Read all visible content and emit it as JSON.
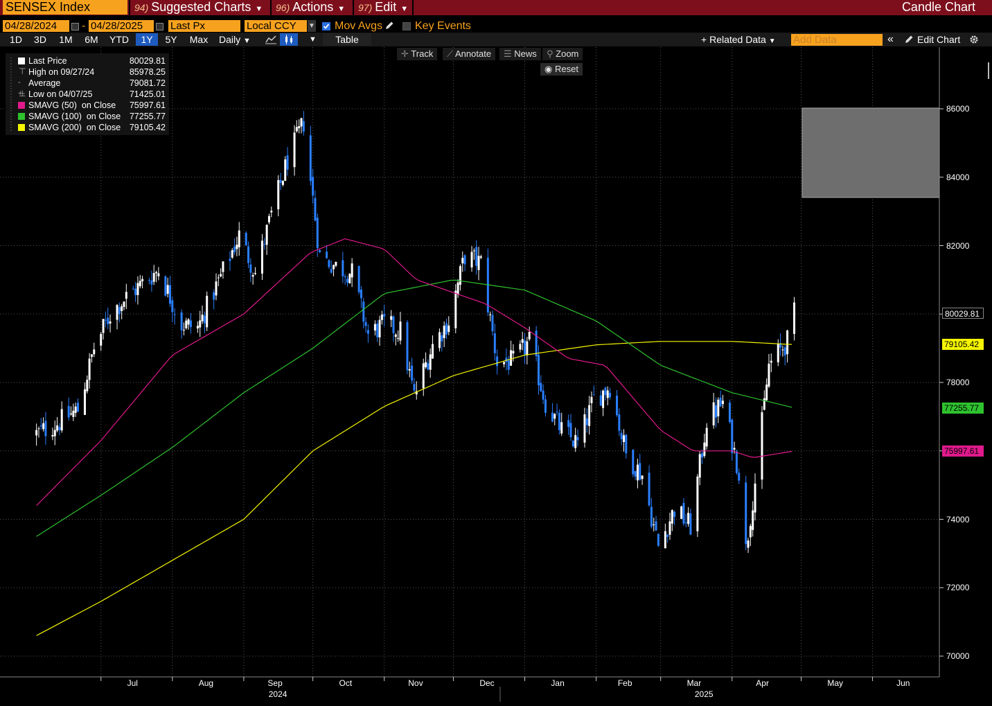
{
  "titlebar": {
    "ticker": "SENSEX Index",
    "menus": [
      {
        "num": "94)",
        "label": "Suggested Charts"
      },
      {
        "num": "96)",
        "label": "Actions"
      },
      {
        "num": "97)",
        "label": "Edit"
      }
    ],
    "chart_type": "Candle Chart"
  },
  "controls": {
    "start_date": "04/28/2024",
    "dash": "-",
    "end_date": "04/28/2025",
    "field": "Last Px",
    "currency": "Local CCY",
    "mov_avgs_label": "Mov Avgs",
    "mov_avgs_checked": true,
    "key_events_label": "Key Events",
    "key_events_checked": false
  },
  "timeframes": [
    "1D",
    "3D",
    "1M",
    "6M",
    "YTD",
    "1Y",
    "5Y",
    "Max"
  ],
  "active_timeframe": "1Y",
  "frequency": "Daily",
  "table_label": "Table",
  "related_data": "Related Data",
  "add_data_placeholder": "Add Data",
  "edit_chart": "Edit Chart",
  "chart_tools": {
    "track": "Track",
    "annotate": "Annotate",
    "news": "News",
    "zoom": "Zoom",
    "reset": "Reset"
  },
  "legend": [
    {
      "label": "Last Price",
      "value": "80029.81",
      "color": "#ffffff",
      "marker": "square"
    },
    {
      "label": "High on 09/27/24",
      "value": "85978.25",
      "color": "#aaaaaa",
      "marker": "high"
    },
    {
      "label": "Average",
      "value": "79081.72",
      "color": "#aaaaaa",
      "marker": "avg"
    },
    {
      "label": "Low on 04/07/25",
      "value": "71425.01",
      "color": "#aaaaaa",
      "marker": "low"
    },
    {
      "label": "SMAVG (50)  on Close",
      "value": "75997.61",
      "color": "#e0198c",
      "marker": "square"
    },
    {
      "label": "SMAVG (100)  on Close",
      "value": "77255.77",
      "color": "#2ec22e",
      "marker": "square"
    },
    {
      "label": "SMAVG (200)  on Close",
      "value": "79105.42",
      "color": "#f5f500",
      "marker": "square"
    }
  ],
  "colors": {
    "up": "#ffffff",
    "down": "#2a7fff",
    "sma50": "#e0198c",
    "sma100": "#2ec22e",
    "sma200": "#f5f500",
    "accent": "#f7a21e",
    "titlebar": "#7d0f1c"
  },
  "chart_data": {
    "type": "candlestick",
    "ylim": [
      69500,
      87500
    ],
    "yticks": [
      "86000",
      "84000",
      "82000",
      "80000",
      "78000",
      "76000",
      "74000",
      "72000",
      "70000"
    ],
    "xticks": [
      "Jul",
      "Aug",
      "Sep",
      "Oct",
      "Nov",
      "Dec",
      "Jan",
      "Feb",
      "Mar",
      "Apr",
      "May",
      "Jun"
    ],
    "years": [
      "2024",
      "2025"
    ],
    "price_tags": [
      {
        "label": "80029.81",
        "value": 80029.81,
        "bg": "#000000",
        "fg": "#ffffff"
      },
      {
        "label": "79105.42",
        "value": 79105.42,
        "bg": "#f5f500",
        "fg": "#000000"
      },
      {
        "label": "77255.77",
        "value": 77255.77,
        "bg": "#2ec22e",
        "fg": "#000000"
      },
      {
        "label": "75997.61",
        "value": 75997.61,
        "bg": "#e0198c",
        "fg": "#000000"
      }
    ],
    "close_path": [
      [
        "2024-06-03",
        76500
      ],
      [
        "2024-06-12",
        76800
      ],
      [
        "2024-06-21",
        77200
      ],
      [
        "2024-06-28",
        79000
      ],
      [
        "2024-07-05",
        80000
      ],
      [
        "2024-07-12",
        80500
      ],
      [
        "2024-07-19",
        80900
      ],
      [
        "2024-07-26",
        81300
      ],
      [
        "2024-08-05",
        79700
      ],
      [
        "2024-08-12",
        79600
      ],
      [
        "2024-08-20",
        80800
      ],
      [
        "2024-08-30",
        82300
      ],
      [
        "2024-09-06",
        81200
      ],
      [
        "2024-09-13",
        82900
      ],
      [
        "2024-09-20",
        84500
      ],
      [
        "2024-09-27",
        85600
      ],
      [
        "2024-10-04",
        81700
      ],
      [
        "2024-10-11",
        81400
      ],
      [
        "2024-10-18",
        81200
      ],
      [
        "2024-10-25",
        79400
      ],
      [
        "2024-11-01",
        79700
      ],
      [
        "2024-11-08",
        79500
      ],
      [
        "2024-11-14",
        77600
      ],
      [
        "2024-11-22",
        79100
      ],
      [
        "2024-11-29",
        79800
      ],
      [
        "2024-12-06",
        81700
      ],
      [
        "2024-12-13",
        81500
      ],
      [
        "2024-12-20",
        78600
      ],
      [
        "2024-12-27",
        78600
      ],
      [
        "2025-01-03",
        79200
      ],
      [
        "2025-01-10",
        77400
      ],
      [
        "2025-01-17",
        76600
      ],
      [
        "2025-01-24",
        76200
      ],
      [
        "2025-01-31",
        77500
      ],
      [
        "2025-02-07",
        77900
      ],
      [
        "2025-02-14",
        75900
      ],
      [
        "2025-02-21",
        75300
      ],
      [
        "2025-02-28",
        73200
      ],
      [
        "2025-03-07",
        74300
      ],
      [
        "2025-03-14",
        73800
      ],
      [
        "2025-03-21",
        76900
      ],
      [
        "2025-03-28",
        77400
      ],
      [
        "2025-04-04",
        75400
      ],
      [
        "2025-04-07",
        73100
      ],
      [
        "2025-04-11",
        75100
      ],
      [
        "2025-04-17",
        78500
      ],
      [
        "2025-04-25",
        79200
      ],
      [
        "2025-04-28",
        80029.81
      ]
    ],
    "sma50_path": [
      [
        "2024-06-03",
        74400
      ],
      [
        "2024-07-01",
        76300
      ],
      [
        "2024-08-01",
        78800
      ],
      [
        "2024-09-01",
        80000
      ],
      [
        "2024-09-30",
        81800
      ],
      [
        "2024-10-15",
        82200
      ],
      [
        "2024-11-01",
        81900
      ],
      [
        "2024-11-15",
        81000
      ],
      [
        "2024-12-15",
        80300
      ],
      [
        "2025-01-01",
        79600
      ],
      [
        "2025-01-20",
        78700
      ],
      [
        "2025-02-05",
        78500
      ],
      [
        "2025-03-01",
        76600
      ],
      [
        "2025-03-15",
        76000
      ],
      [
        "2025-04-01",
        76000
      ],
      [
        "2025-04-10",
        75800
      ],
      [
        "2025-04-28",
        75997.61
      ]
    ],
    "sma100_path": [
      [
        "2024-06-03",
        73500
      ],
      [
        "2024-07-01",
        74700
      ],
      [
        "2024-08-01",
        76100
      ],
      [
        "2024-09-01",
        77700
      ],
      [
        "2024-10-01",
        79000
      ],
      [
        "2024-11-01",
        80600
      ],
      [
        "2024-12-01",
        81000
      ],
      [
        "2025-01-01",
        80700
      ],
      [
        "2025-02-01",
        79800
      ],
      [
        "2025-03-01",
        78500
      ],
      [
        "2025-04-01",
        77700
      ],
      [
        "2025-04-28",
        77255.77
      ]
    ],
    "sma200_path": [
      [
        "2024-06-03",
        70600
      ],
      [
        "2024-07-01",
        71600
      ],
      [
        "2024-08-01",
        72800
      ],
      [
        "2024-09-01",
        74000
      ],
      [
        "2024-10-01",
        76000
      ],
      [
        "2024-11-01",
        77300
      ],
      [
        "2024-12-01",
        78200
      ],
      [
        "2025-01-01",
        78800
      ],
      [
        "2025-02-01",
        79100
      ],
      [
        "2025-03-01",
        79200
      ],
      [
        "2025-04-01",
        79200
      ],
      [
        "2025-04-28",
        79105.42
      ]
    ],
    "extremes": {
      "high": 85978.25,
      "low": 71425.01
    }
  }
}
